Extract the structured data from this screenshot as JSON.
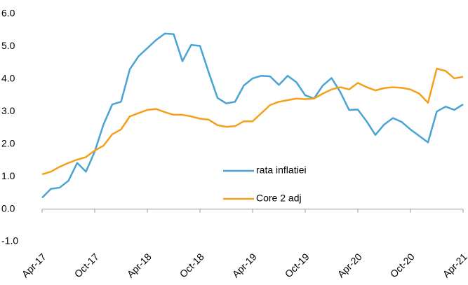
{
  "chart_data": {
    "type": "line",
    "categories": [
      "Apr-17",
      null,
      null,
      null,
      null,
      null,
      "Oct-17",
      null,
      null,
      null,
      null,
      null,
      "Apr-18",
      null,
      null,
      null,
      null,
      null,
      "Oct-18",
      null,
      null,
      null,
      null,
      null,
      "Apr-19",
      null,
      null,
      null,
      null,
      null,
      "Oct-19",
      null,
      null,
      null,
      null,
      null,
      "Apr-20",
      null,
      null,
      null,
      null,
      null,
      "Oct-20",
      null,
      null,
      null,
      null,
      null,
      "Apr-21"
    ],
    "series": [
      {
        "name": "rata inflatiei",
        "color": "#4aa3d3",
        "values": [
          0.35,
          0.62,
          0.66,
          0.87,
          1.42,
          1.15,
          1.77,
          2.6,
          3.22,
          3.3,
          4.3,
          4.7,
          4.95,
          5.2,
          5.4,
          5.38,
          4.55,
          5.05,
          5.02,
          4.2,
          3.42,
          3.25,
          3.3,
          3.8,
          4.02,
          4.1,
          4.08,
          3.82,
          4.1,
          3.9,
          3.5,
          3.4,
          3.8,
          4.03,
          3.6,
          3.05,
          3.06,
          2.7,
          2.28,
          2.6,
          2.8,
          2.68,
          2.45,
          2.25,
          2.05,
          3.0,
          3.15,
          3.05,
          3.22
        ]
      },
      {
        "name": "Core 2 adj",
        "color": "#f5a01a",
        "values": [
          1.07,
          1.15,
          1.3,
          1.42,
          1.52,
          1.6,
          1.8,
          1.95,
          2.3,
          2.45,
          2.85,
          2.95,
          3.05,
          3.08,
          2.98,
          2.9,
          2.9,
          2.85,
          2.78,
          2.75,
          2.58,
          2.53,
          2.55,
          2.7,
          2.7,
          2.95,
          3.2,
          3.3,
          3.35,
          3.4,
          3.38,
          3.4,
          3.55,
          3.68,
          3.75,
          3.68,
          3.88,
          3.75,
          3.65,
          3.72,
          3.75,
          3.73,
          3.68,
          3.55,
          3.27,
          4.32,
          4.25,
          4.02,
          4.07
        ]
      }
    ],
    "ylim": [
      -1,
      6
    ],
    "yticks": [
      {
        "value": -1,
        "label": "-1.0"
      },
      {
        "value": 0,
        "label": "0.0"
      },
      {
        "value": 1,
        "label": "1.0"
      },
      {
        "value": 2,
        "label": "2.0"
      },
      {
        "value": 3,
        "label": "3.0"
      },
      {
        "value": 4,
        "label": "4.0"
      },
      {
        "value": 5,
        "label": "5.0"
      },
      {
        "value": 6,
        "label": "6.0"
      }
    ],
    "grid": false,
    "legend_position": "center"
  }
}
